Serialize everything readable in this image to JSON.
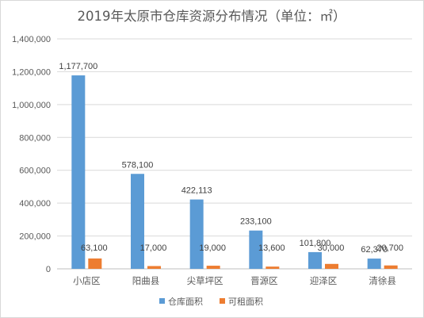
{
  "chart_data": {
    "type": "bar",
    "title": "2019年太原市仓库资源分布情况（单位：㎡）",
    "categories": [
      "小店区",
      "阳曲县",
      "尖草坪区",
      "晋源区",
      "迎泽区",
      "清徐县"
    ],
    "series": [
      {
        "name": "仓库面积",
        "color": "#5b9bd5",
        "values": [
          1177700,
          578100,
          422113,
          233100,
          101800,
          62370
        ],
        "labels": [
          "1,177,700",
          "578,100",
          "422,113",
          "233,100",
          "101,800",
          "62,370"
        ]
      },
      {
        "name": "可租面积",
        "color": "#ed7d31",
        "values": [
          63100,
          17000,
          19000,
          13600,
          30000,
          20700
        ],
        "labels": [
          "63,100",
          "17,000",
          "19,000",
          "13,600",
          "30,000",
          "20,700"
        ]
      }
    ],
    "ylim": [
      0,
      1400000
    ],
    "yticks": [
      "0",
      "200,000",
      "400,000",
      "600,000",
      "800,000",
      "1,000,000",
      "1,200,000",
      "1,400,000"
    ],
    "grid": true,
    "legend_position": "bottom"
  }
}
